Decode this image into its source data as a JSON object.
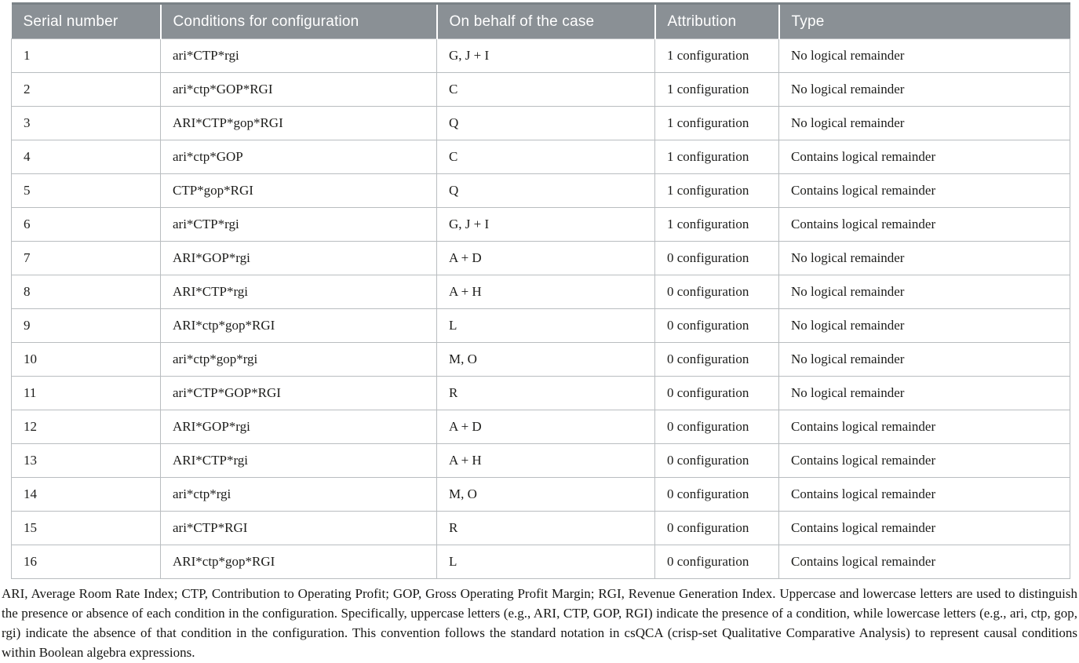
{
  "table": {
    "columns": [
      "Serial number",
      "Conditions for configuration",
      "On behalf of the case",
      "Attribution",
      "Type"
    ],
    "rows": [
      {
        "serial": "1",
        "conditions": "ari*CTP*rgi",
        "case": "G, J + I",
        "attribution": "1 configuration",
        "type": "No logical remainder"
      },
      {
        "serial": "2",
        "conditions": "ari*ctp*GOP*RGI",
        "case": "C",
        "attribution": "1 configuration",
        "type": "No logical remainder"
      },
      {
        "serial": "3",
        "conditions": "ARI*CTP*gop*RGI",
        "case": "Q",
        "attribution": "1 configuration",
        "type": "No logical remainder"
      },
      {
        "serial": "4",
        "conditions": "ari*ctp*GOP",
        "case": "C",
        "attribution": "1 configuration",
        "type": "Contains logical remainder"
      },
      {
        "serial": "5",
        "conditions": "CTP*gop*RGI",
        "case": "Q",
        "attribution": "1 configuration",
        "type": "Contains logical remainder"
      },
      {
        "serial": "6",
        "conditions": "ari*CTP*rgi",
        "case": "G, J + I",
        "attribution": "1 configuration",
        "type": "Contains logical remainder"
      },
      {
        "serial": "7",
        "conditions": "ARI*GOP*rgi",
        "case": "A + D",
        "attribution": "0 configuration",
        "type": "No logical remainder"
      },
      {
        "serial": "8",
        "conditions": "ARI*CTP*rgi",
        "case": "A + H",
        "attribution": "0 configuration",
        "type": "No logical remainder"
      },
      {
        "serial": "9",
        "conditions": "ARI*ctp*gop*RGI",
        "case": "L",
        "attribution": "0 configuration",
        "type": "No logical remainder"
      },
      {
        "serial": "10",
        "conditions": "ari*ctp*gop*rgi",
        "case": "M, O",
        "attribution": "0 configuration",
        "type": "No logical remainder"
      },
      {
        "serial": "11",
        "conditions": "ari*CTP*GOP*RGI",
        "case": "R",
        "attribution": "0 configuration",
        "type": "No logical remainder"
      },
      {
        "serial": "12",
        "conditions": "ARI*GOP*rgi",
        "case": "A + D",
        "attribution": "0 configuration",
        "type": "Contains logical remainder"
      },
      {
        "serial": "13",
        "conditions": "ARI*CTP*rgi",
        "case": "A + H",
        "attribution": "0 configuration",
        "type": "Contains logical remainder"
      },
      {
        "serial": "14",
        "conditions": "ari*ctp*rgi",
        "case": "M, O",
        "attribution": "0 configuration",
        "type": "Contains logical remainder"
      },
      {
        "serial": "15",
        "conditions": "ari*CTP*RGI",
        "case": "R",
        "attribution": "0 configuration",
        "type": "Contains logical remainder"
      },
      {
        "serial": "16",
        "conditions": "ARI*ctp*gop*RGI",
        "case": "L",
        "attribution": "0 configuration",
        "type": "Contains logical remainder"
      }
    ]
  },
  "footnote": "ARI, Average Room Rate Index; CTP, Contribution to Operating Profit; GOP, Gross Operating Profit Margin; RGI, Revenue Generation Index. Uppercase and lowercase letters are used to distinguish the presence or absence of each condition in the configuration. Specifically, uppercase letters (e.g., ARI, CTP, GOP, RGI) indicate the presence of a condition, while lowercase letters (e.g., ari, ctp, gop, rgi) indicate the absence of that condition in the configuration. This convention follows the standard notation in csQCA (crisp-set Qualitative Comparative Analysis) to represent causal conditions within Boolean algebra expressions.",
  "colors": {
    "header_bg": "#8a9095",
    "header_top_edge": "#7b8287",
    "header_text": "#ffffff",
    "cell_border": "#b9bdc0",
    "body_text": "#1c1c1a"
  }
}
